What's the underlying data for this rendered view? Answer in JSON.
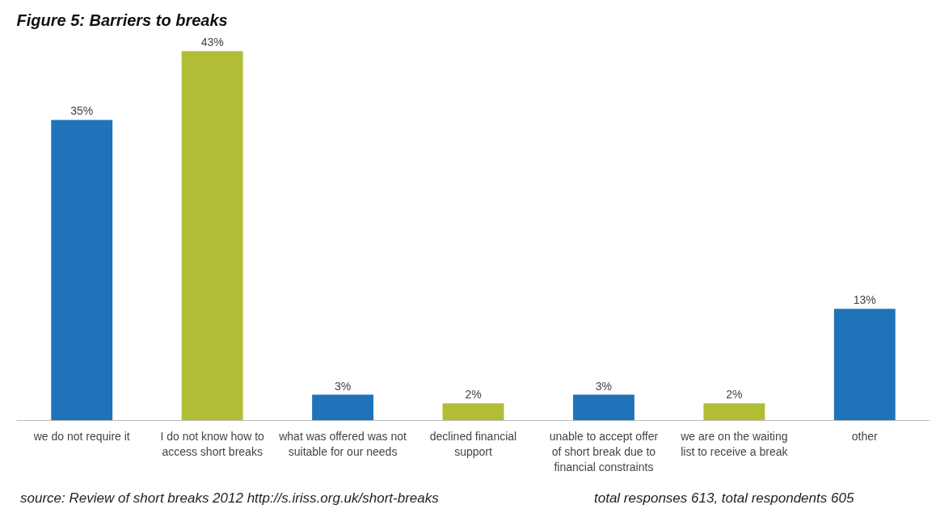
{
  "chart_data": {
    "type": "bar",
    "title": "Figure 5: Barriers to breaks",
    "categories": [
      "we do not require it",
      "I do not know how to access short breaks",
      "what was offered was not suitable for our needs",
      "declined financial support",
      "unable to accept offer of short break due to financial constraints",
      "we are on the waiting list to receive a break",
      "other"
    ],
    "values": [
      35,
      43,
      3,
      2,
      3,
      2,
      13
    ],
    "colors": [
      "#1f73b9",
      "#b2bd36",
      "#1f73b9",
      "#b2bd36",
      "#1f73b9",
      "#b2bd36",
      "#1f73b9"
    ],
    "value_labels": [
      "35%",
      "43%",
      "3%",
      "2%",
      "3%",
      "2%",
      "13%"
    ],
    "annotations": [
      "source: Review of short breaks 2012 http://s.iriss.org.uk/short-breaks",
      "total responses 613, total respondents 605"
    ],
    "grid": false
  }
}
